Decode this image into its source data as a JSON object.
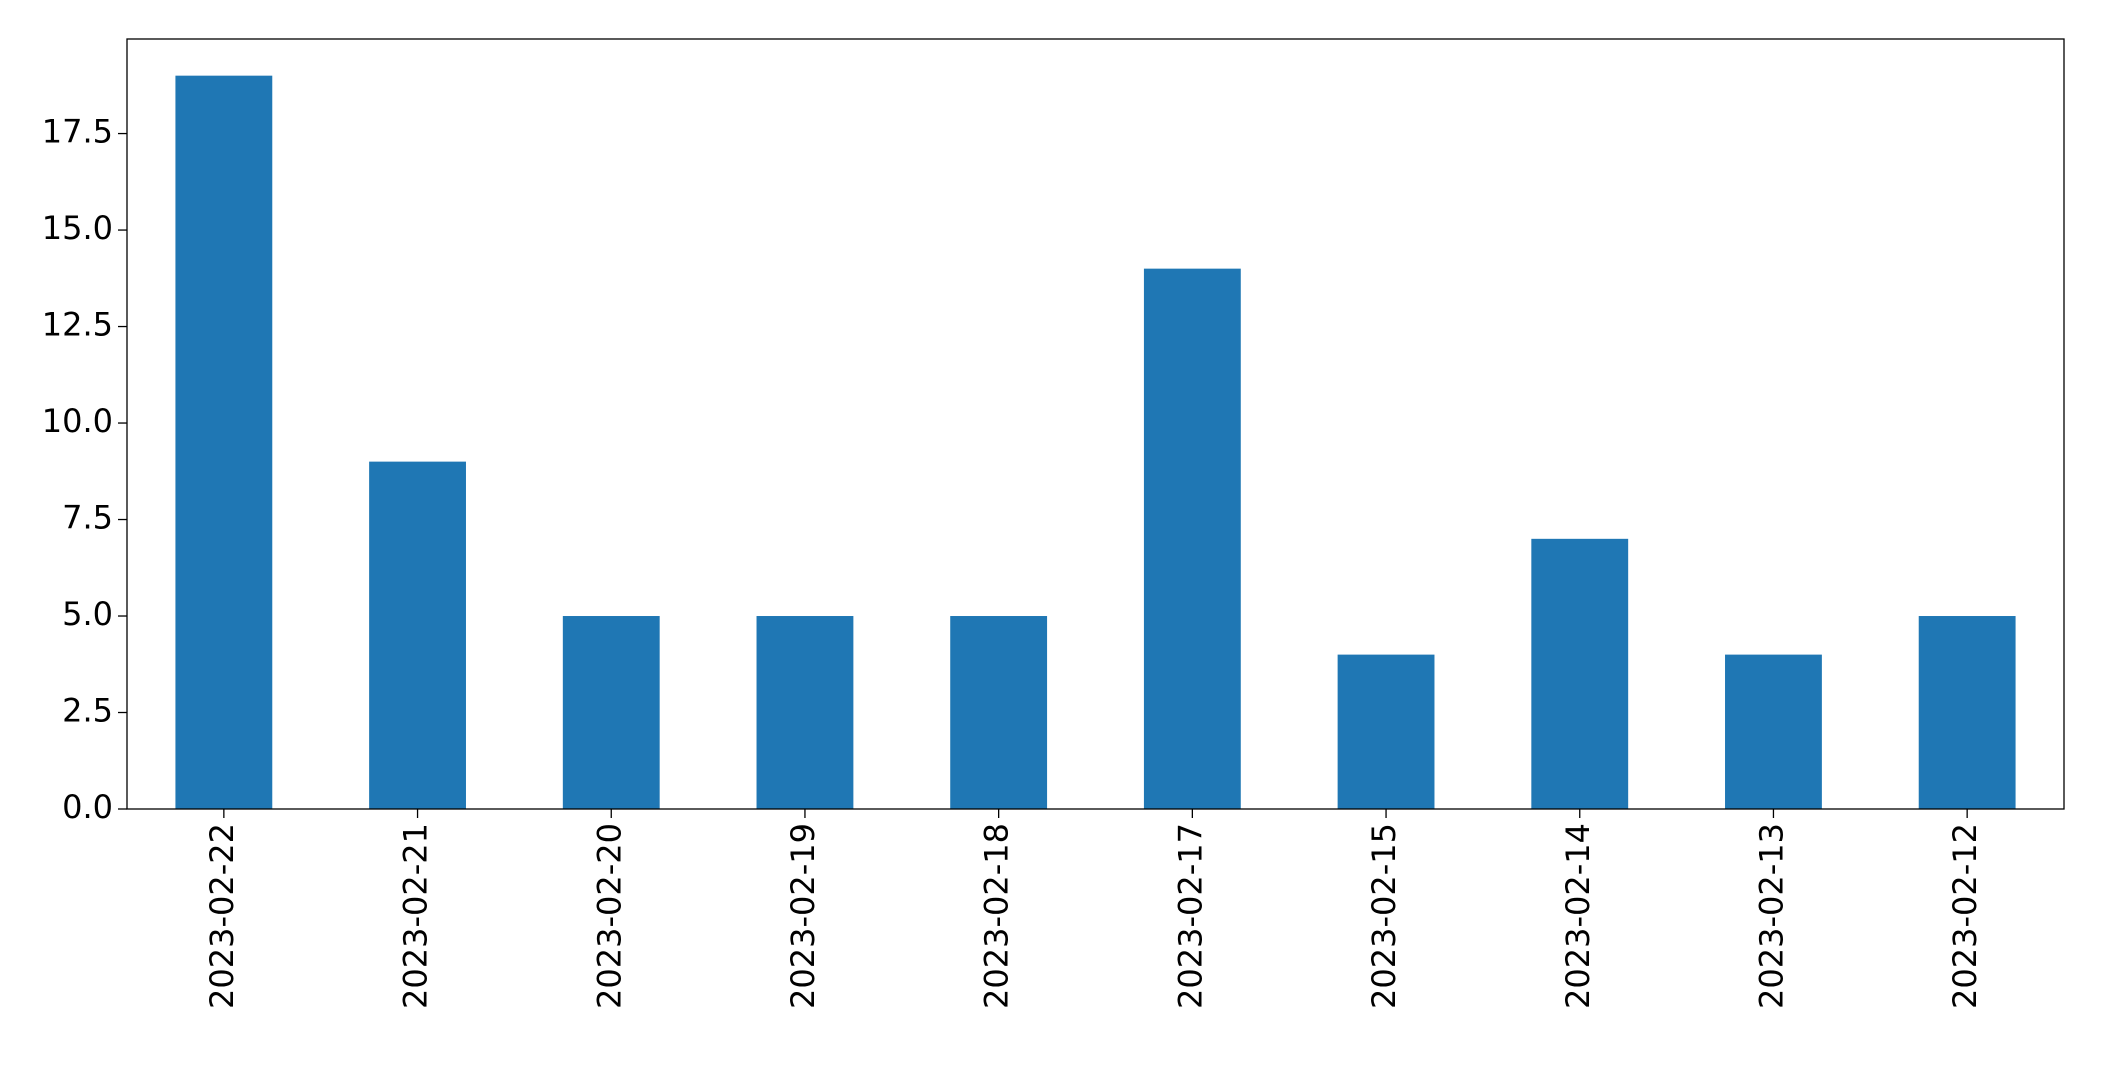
{
  "chart_data": {
    "type": "bar",
    "categories": [
      "2023-02-22",
      "2023-02-21",
      "2023-02-20",
      "2023-02-19",
      "2023-02-18",
      "2023-02-17",
      "2023-02-15",
      "2023-02-14",
      "2023-02-13",
      "2023-02-12"
    ],
    "values": [
      19,
      9,
      5,
      5,
      5,
      14,
      4,
      7,
      4,
      5
    ],
    "color": "#1f77b4",
    "ylim": [
      0,
      19.95
    ],
    "yticks": [
      {
        "value": 0,
        "label": "0.0"
      },
      {
        "value": 2.5,
        "label": "2.5"
      },
      {
        "value": 5,
        "label": "5.0"
      },
      {
        "value": 7.5,
        "label": "7.5"
      },
      {
        "value": 10,
        "label": "10.0"
      },
      {
        "value": 12.5,
        "label": "12.5"
      },
      {
        "value": 15,
        "label": "15.0"
      },
      {
        "value": 17.5,
        "label": "17.5"
      }
    ]
  }
}
